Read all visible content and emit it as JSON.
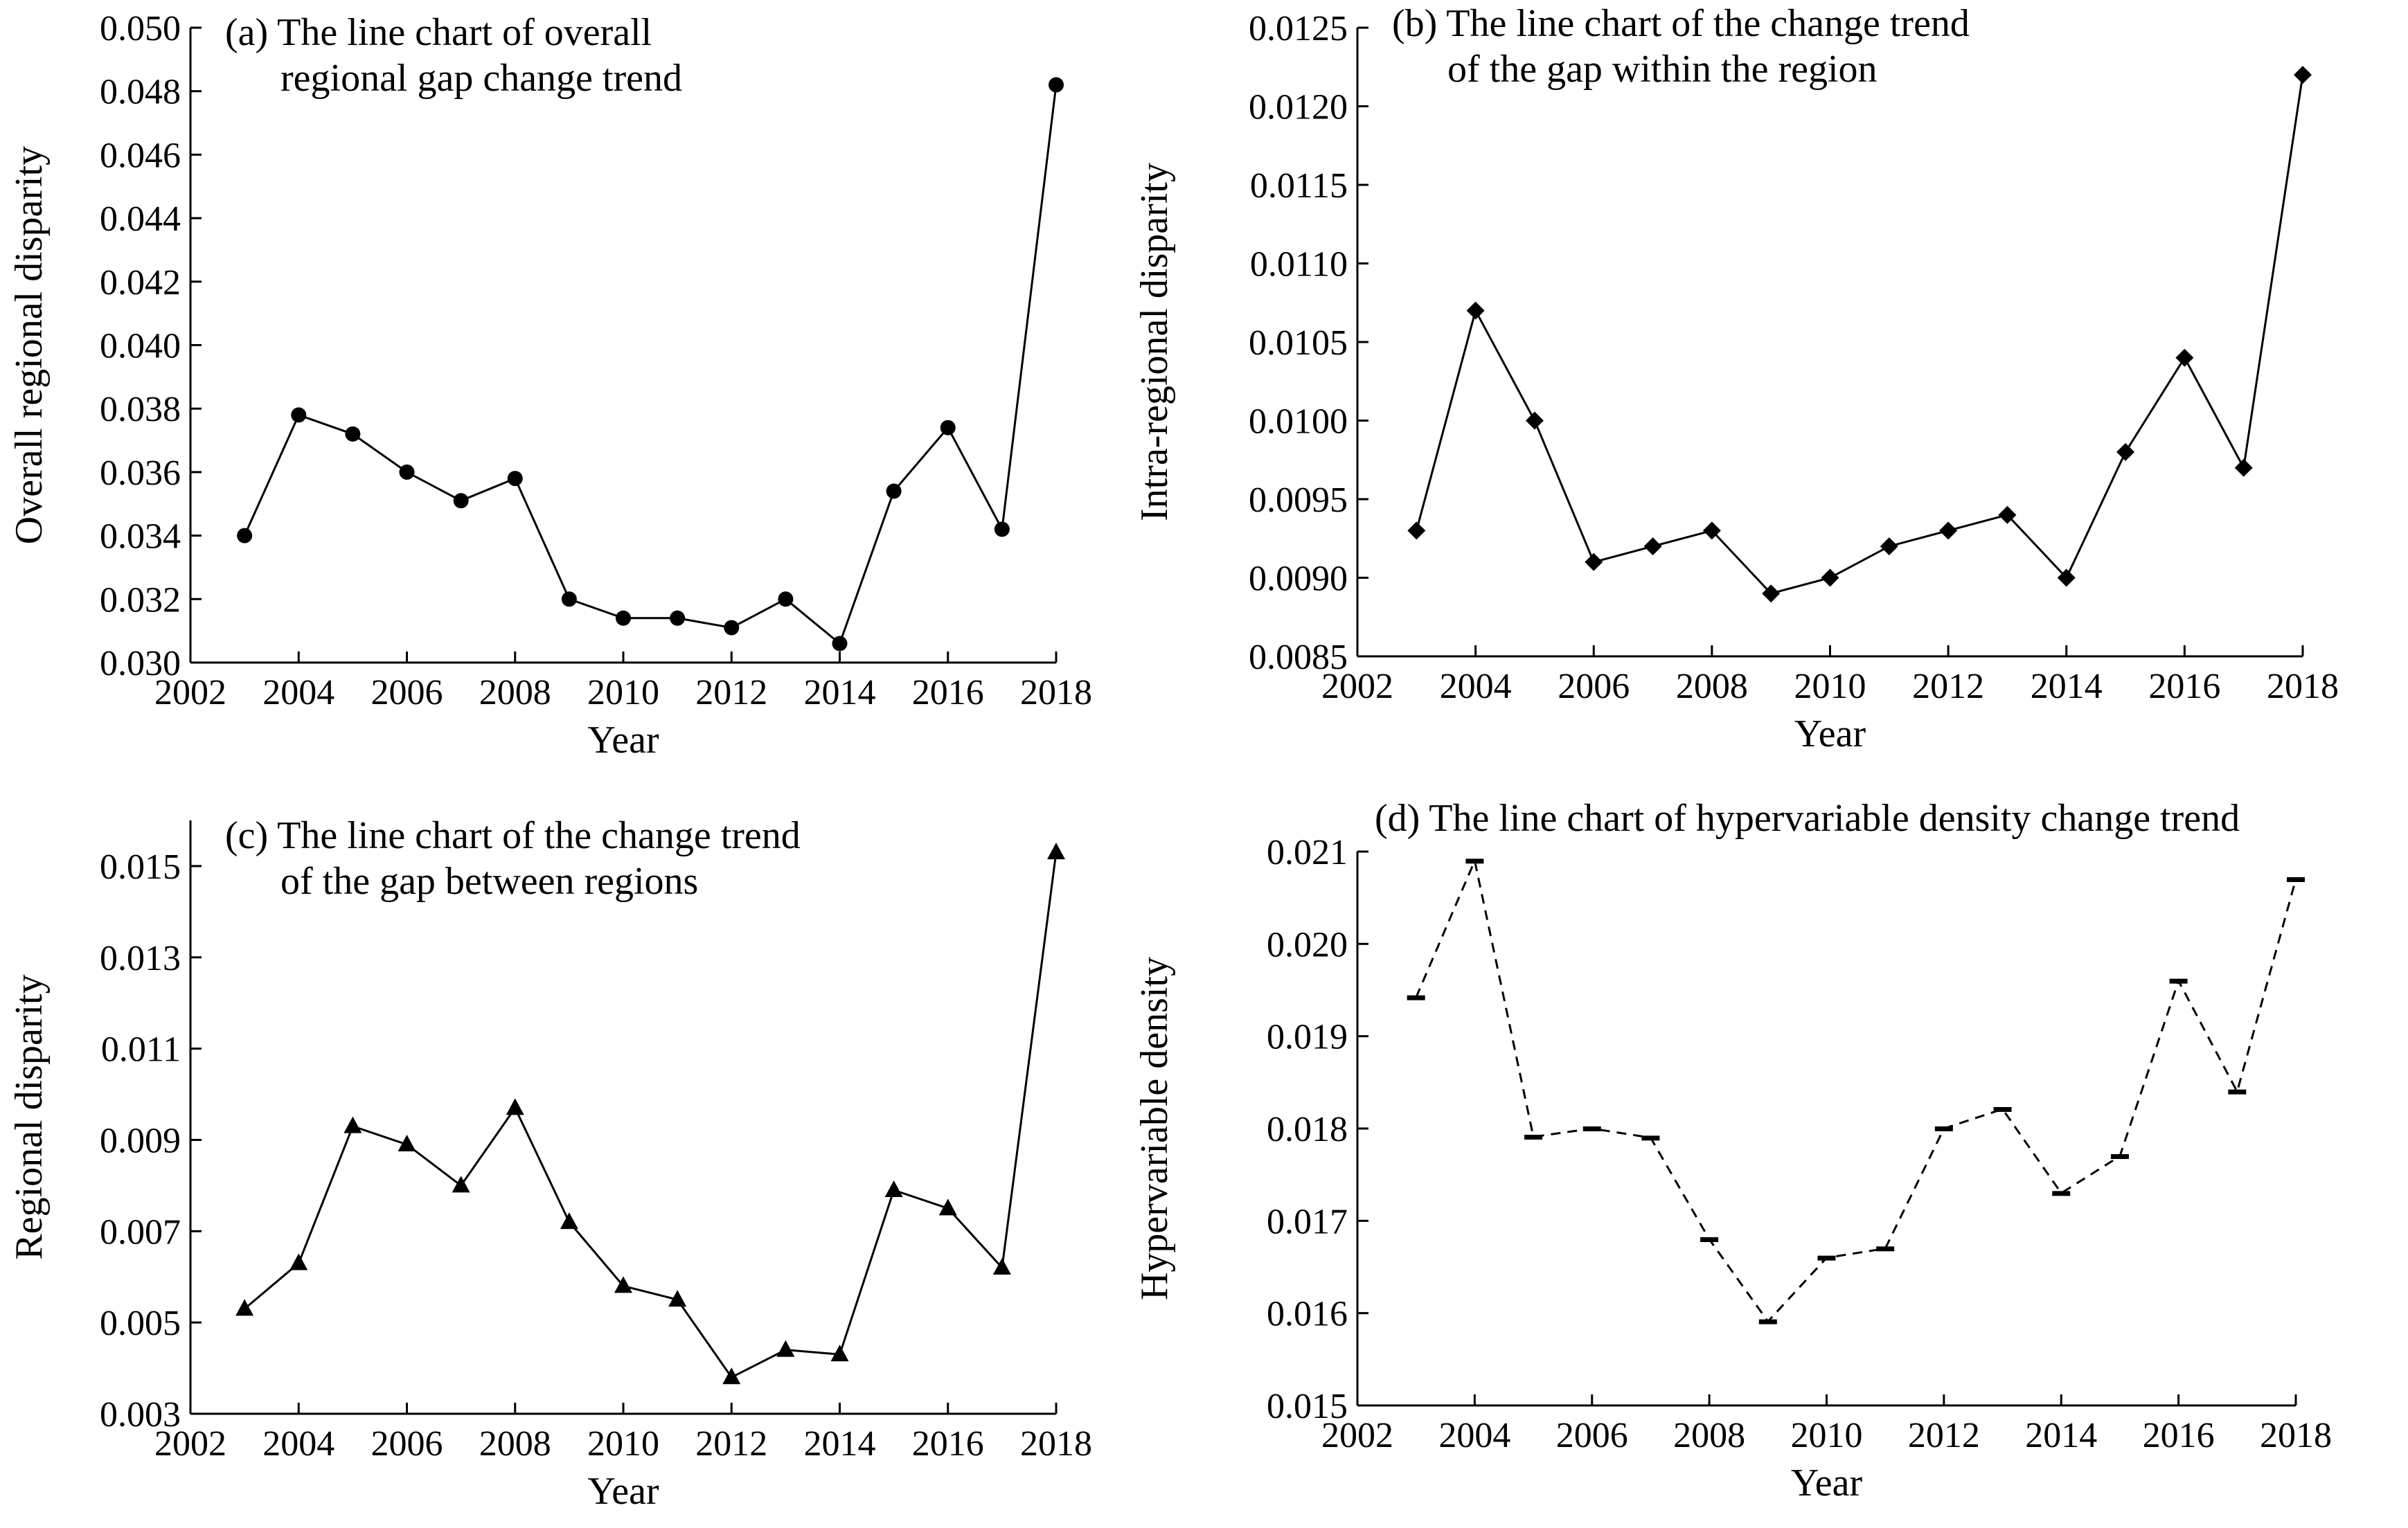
{
  "chart_data": [
    {
      "type": "line",
      "panel_label": "(a)",
      "title": [
        "(a) The line chart of overall",
        "regional gap change trend"
      ],
      "xlabel": "Year",
      "ylabel": "Overall regional disparity",
      "xlim": [
        2002,
        2018
      ],
      "ylim": [
        0.03,
        0.05
      ],
      "xticks": [
        "2002",
        "2004",
        "2006",
        "2008",
        "2010",
        "2012",
        "2014",
        "2016",
        "2018"
      ],
      "yticks": [
        "0.030",
        "0.032",
        "0.034",
        "0.036",
        "0.038",
        "0.040",
        "0.042",
        "0.044",
        "0.046",
        "0.048",
        "0.050"
      ],
      "marker": "circle",
      "line_style": "solid",
      "series": [
        {
          "x": [
            2003,
            2004,
            2005,
            2006,
            2007,
            2008,
            2009,
            2010,
            2011,
            2012,
            2013,
            2014,
            2015,
            2016,
            2017,
            2018
          ],
          "values": [
            0.034,
            0.0378,
            0.0372,
            0.036,
            0.0351,
            0.0358,
            0.032,
            0.0314,
            0.0314,
            0.0311,
            0.032,
            0.0306,
            0.0354,
            0.0374,
            0.0342,
            0.0482
          ]
        }
      ]
    },
    {
      "type": "line",
      "panel_label": "(b)",
      "title": [
        "(b) The line chart of the change trend",
        "of the gap within the region"
      ],
      "xlabel": "Year",
      "ylabel": "Intra-regional disparity",
      "xlim": [
        2002,
        2018
      ],
      "ylim": [
        0.0085,
        0.0125
      ],
      "xticks": [
        "2002",
        "2004",
        "2006",
        "2008",
        "2010",
        "2012",
        "2014",
        "2016",
        "2018"
      ],
      "yticks": [
        "0.0085",
        "0.0090",
        "0.0095",
        "0.0100",
        "0.0105",
        "0.0110",
        "0.0115",
        "0.0120",
        "0.0125"
      ],
      "marker": "diamond",
      "line_style": "solid",
      "series": [
        {
          "x": [
            2003,
            2004,
            2005,
            2006,
            2007,
            2008,
            2009,
            2010,
            2011,
            2012,
            2013,
            2014,
            2015,
            2016,
            2017,
            2018
          ],
          "values": [
            0.0093,
            0.0107,
            0.01,
            0.0091,
            0.0092,
            0.0093,
            0.0089,
            0.009,
            0.0092,
            0.0093,
            0.0094,
            0.009,
            0.0098,
            0.0104,
            0.0097,
            0.0122
          ]
        }
      ]
    },
    {
      "type": "line",
      "panel_label": "(c)",
      "title": [
        "(c) The line chart of the change trend",
        "of the gap between regions"
      ],
      "xlabel": "Year",
      "ylabel": "Regional disparity",
      "xlim": [
        2002,
        2018
      ],
      "ylim": [
        0.003,
        0.016
      ],
      "xticks": [
        "2002",
        "2004",
        "2006",
        "2008",
        "2010",
        "2012",
        "2014",
        "2016",
        "2018"
      ],
      "yticks": [
        "0.003",
        "0.005",
        "0.007",
        "0.009",
        "0.011",
        "0.013",
        "0.015"
      ],
      "marker": "triangle",
      "line_style": "solid",
      "series": [
        {
          "x": [
            2003,
            2004,
            2005,
            2006,
            2007,
            2008,
            2009,
            2010,
            2011,
            2012,
            2013,
            2014,
            2015,
            2016,
            2017,
            2018
          ],
          "values": [
            0.0053,
            0.0063,
            0.0093,
            0.0089,
            0.008,
            0.0097,
            0.0072,
            0.0058,
            0.0055,
            0.0038,
            0.0044,
            0.0043,
            0.0079,
            0.0075,
            0.0062,
            0.0153
          ]
        }
      ]
    },
    {
      "type": "line",
      "panel_label": "(d)",
      "title": [
        "(d) The line chart of hypervariable density change trend"
      ],
      "xlabel": "Year",
      "ylabel": "Hypervariable density",
      "xlim": [
        2002,
        2018
      ],
      "ylim": [
        0.015,
        0.021
      ],
      "xticks": [
        "2002",
        "2004",
        "2006",
        "2008",
        "2010",
        "2012",
        "2014",
        "2016",
        "2018"
      ],
      "yticks": [
        "0.015",
        "0.016",
        "0.017",
        "0.018",
        "0.019",
        "0.020",
        "0.021"
      ],
      "marker": "dash",
      "line_style": "dashed",
      "series": [
        {
          "x": [
            2003,
            2004,
            2005,
            2006,
            2007,
            2008,
            2009,
            2010,
            2011,
            2012,
            2013,
            2014,
            2015,
            2016,
            2017,
            2018
          ],
          "values": [
            0.01942,
            0.0209,
            0.01791,
            0.018,
            0.0179,
            0.0168,
            0.01591,
            0.0166,
            0.0167,
            0.018,
            0.01821,
            0.0173,
            0.0177,
            0.0196,
            0.0184,
            0.0207
          ]
        }
      ]
    }
  ]
}
